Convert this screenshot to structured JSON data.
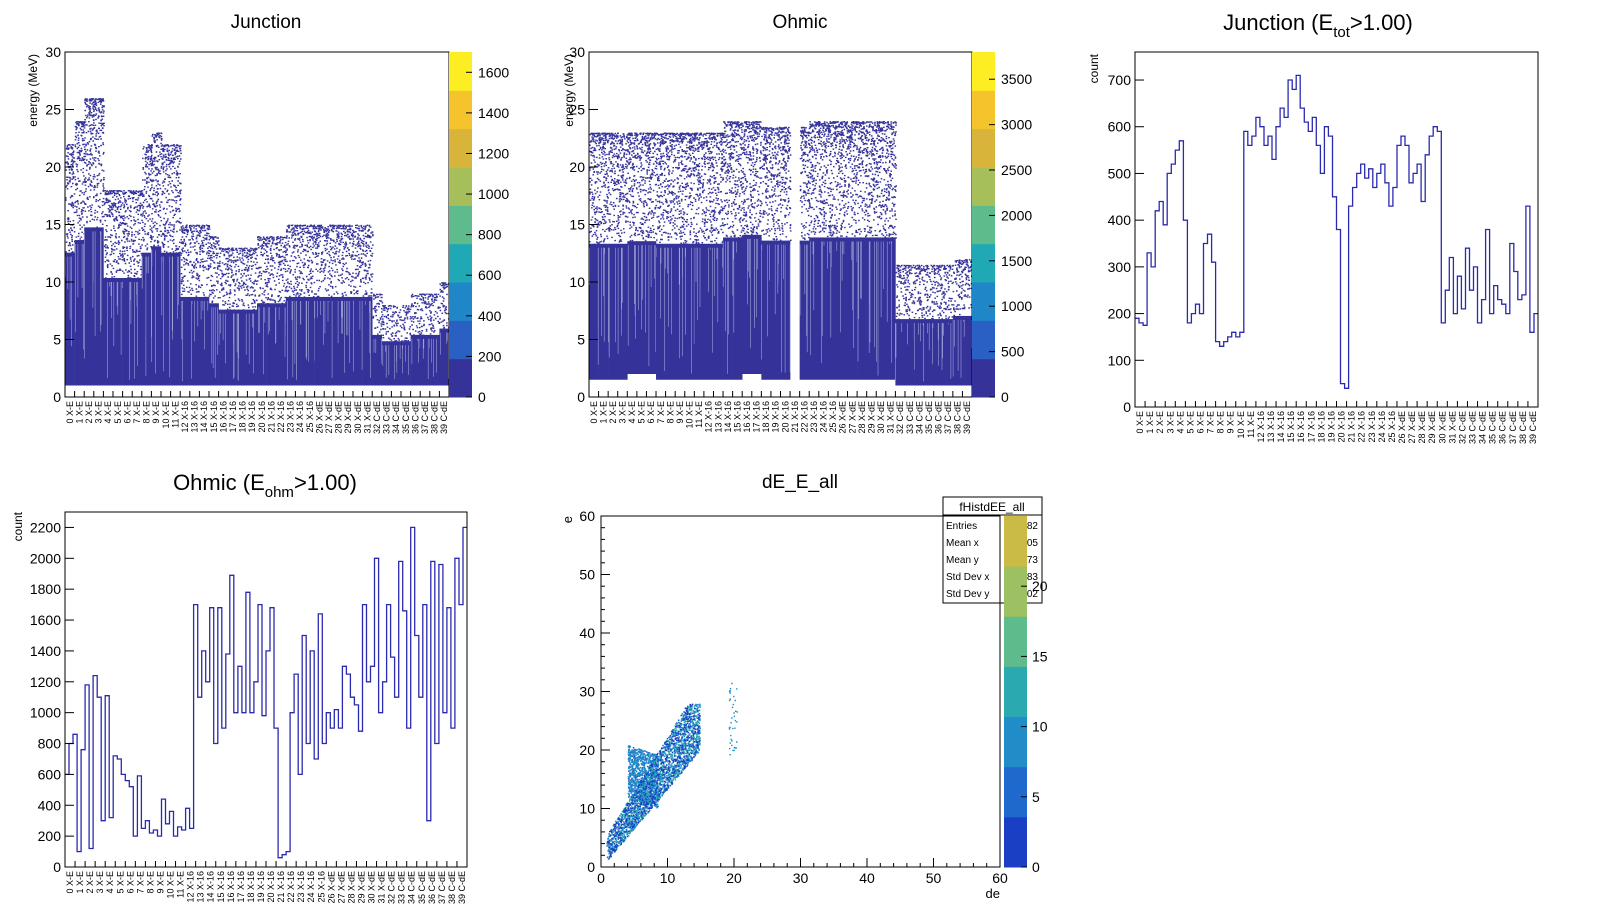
{
  "chart_data": [
    {
      "type": "heatmap",
      "title": "Junction",
      "ylabel": "energy (MeV)",
      "ylim": [
        0,
        30
      ],
      "yticks": [
        0,
        5,
        10,
        15,
        20,
        25,
        30
      ],
      "zlim": [
        0,
        1700
      ],
      "zticks": [
        0,
        200,
        400,
        600,
        800,
        1000,
        1200,
        1400,
        1600
      ],
      "channels": 40,
      "channel_labels": [
        "0 X-E",
        "1 X-E",
        "2 X-E",
        "3 X-E",
        "4 X-E",
        "5 X-E",
        "6 X-E",
        "7 X-E",
        "8 X-E",
        "9 X-E",
        "10 X-E",
        "11 X-E",
        "12 X-16",
        "13 X-16",
        "14 X-16",
        "15 X-16",
        "16 X-16",
        "17 X-16",
        "18 X-16",
        "19 X-16",
        "20 X-16",
        "21 X-16",
        "22 X-16",
        "23 X-16",
        "24 X-16",
        "25 X-16",
        "26 X-dE",
        "27 X-dE",
        "28 X-dE",
        "29 X-dE",
        "30 X-dE",
        "31 X-dE",
        "32 C-dE",
        "33 C-dE",
        "34 C-dE",
        "35 C-dE",
        "36 C-dE",
        "37 C-dE",
        "38 C-dE",
        "39 C-dE"
      ],
      "band_top": [
        22,
        24,
        26,
        26,
        18,
        18,
        18,
        18,
        22,
        23,
        22,
        22,
        15,
        15,
        15,
        14,
        13,
        13,
        13,
        13,
        14,
        14,
        14,
        15,
        15,
        15,
        15,
        15,
        15,
        15,
        15,
        15,
        9,
        8,
        8,
        8,
        9,
        9,
        9,
        10
      ],
      "band_bottom": [
        1,
        1,
        1,
        1,
        1,
        1,
        1,
        1,
        1,
        1,
        1,
        1,
        1,
        1,
        1,
        1,
        1,
        1,
        1,
        1,
        1,
        1,
        1,
        1,
        1,
        1,
        1,
        1,
        1,
        1,
        1,
        1,
        1,
        1,
        1,
        1,
        1,
        1,
        1,
        1
      ],
      "colorbar_colors": [
        "#35339a",
        "#2a5fc4",
        "#1f86c8",
        "#20a8b5",
        "#5ebc8c",
        "#a7bf5a",
        "#d8b53a",
        "#f5c32b",
        "#fdee24"
      ]
    },
    {
      "type": "heatmap",
      "title": "Ohmic",
      "ylabel": "energy (MeV)",
      "ylim": [
        0,
        30
      ],
      "yticks": [
        0,
        5,
        10,
        15,
        20,
        25,
        30
      ],
      "zlim": [
        0,
        3800
      ],
      "zticks": [
        0,
        500,
        1000,
        1500,
        2000,
        2500,
        3000,
        3500
      ],
      "channels": 40,
      "channel_labels": [
        "0 X-E",
        "1 X-E",
        "2 X-E",
        "3 X-E",
        "4 X-E",
        "5 X-E",
        "6 X-E",
        "7 X-E",
        "8 X-E",
        "9 X-E",
        "10 X-E",
        "11 X-E",
        "12 X-16",
        "13 X-16",
        "14 X-16",
        "15 X-16",
        "16 X-16",
        "17 X-16",
        "18 X-16",
        "19 X-16",
        "20 X-16",
        "21 X-16",
        "22 X-16",
        "23 X-16",
        "24 X-16",
        "25 X-16",
        "26 X-dE",
        "27 X-dE",
        "28 X-dE",
        "29 X-dE",
        "30 X-dE",
        "31 X-dE",
        "32 C-dE",
        "33 C-dE",
        "34 C-dE",
        "35 C-dE",
        "36 C-dE",
        "37 C-dE",
        "38 C-dE",
        "39 C-dE"
      ],
      "band_top": [
        23,
        23,
        23,
        23,
        23,
        23,
        23,
        23,
        23,
        23,
        23,
        23,
        23,
        23,
        24,
        24,
        24,
        24,
        23.5,
        23.5,
        23.5,
        0,
        23.5,
        24,
        24,
        24,
        24,
        24,
        24,
        24,
        24,
        24,
        11.5,
        11.5,
        11.5,
        11.5,
        11.5,
        11.5,
        12,
        12
      ],
      "band_bottom": [
        1.5,
        1.5,
        1.5,
        1.5,
        2,
        2,
        2,
        1.5,
        1.5,
        1.5,
        1.5,
        1.5,
        1.5,
        1.5,
        1.5,
        1.5,
        2,
        2,
        1.5,
        1.5,
        1.5,
        0,
        1.5,
        1.5,
        1.5,
        1.5,
        1.5,
        1.5,
        1.5,
        1.5,
        1.5,
        1.5,
        1,
        1,
        1,
        1,
        1,
        1,
        1,
        1
      ],
      "colorbar_colors": [
        "#35339a",
        "#2a5fc4",
        "#1f86c8",
        "#20a8b5",
        "#5ebc8c",
        "#a7bf5a",
        "#d8b53a",
        "#f5c32b",
        "#fdee24"
      ]
    },
    {
      "type": "line",
      "title_main": "Junction (E",
      "title_sub": "tot",
      "title_tail": ">1.00)",
      "ylabel": "count",
      "ylim": [
        0,
        760
      ],
      "yticks": [
        0,
        100,
        200,
        300,
        400,
        500,
        600,
        700
      ],
      "channels": 40,
      "channel_labels": [
        "0 X-E",
        "1 X-E",
        "2 X-E",
        "3 X-E",
        "4 X-E",
        "5 X-E",
        "6 X-E",
        "7 X-E",
        "8 X-E",
        "9 X-E",
        "10 X-E",
        "11 X-E",
        "12 X-16",
        "13 X-16",
        "14 X-16",
        "15 X-16",
        "16 X-16",
        "17 X-16",
        "18 X-16",
        "19 X-16",
        "20 X-16",
        "21 X-16",
        "22 X-16",
        "23 X-16",
        "24 X-16",
        "25 X-16",
        "26 X-dE",
        "27 X-dE",
        "28 X-dE",
        "29 X-dE",
        "30 X-dE",
        "31 X-dE",
        "32 C-dE",
        "33 C-dE",
        "34 C-dE",
        "35 C-dE",
        "36 C-dE",
        "37 C-dE",
        "38 C-dE",
        "39 C-dE"
      ],
      "y": [
        190,
        180,
        175,
        330,
        300,
        420,
        440,
        390,
        500,
        520,
        550,
        570,
        400,
        180,
        200,
        220,
        200,
        350,
        370,
        310,
        140,
        130,
        140,
        150,
        160,
        150,
        160,
        590,
        560,
        580,
        620,
        600,
        560,
        580,
        530,
        600,
        640,
        620,
        700,
        680,
        710,
        640,
        610,
        590,
        620,
        560,
        500,
        600,
        580,
        450,
        380,
        50,
        40,
        430,
        470,
        500,
        520,
        490,
        510,
        470,
        500,
        520,
        480,
        430,
        470,
        560,
        580,
        560,
        480,
        500,
        520,
        440,
        540,
        580,
        600,
        590,
        180,
        250,
        320,
        200,
        280,
        210,
        340,
        250,
        300,
        180,
        230,
        380,
        200,
        260,
        230,
        220,
        200,
        350,
        290,
        230,
        240,
        430,
        160,
        200
      ],
      "colors": {
        "line": "#2a2ab0"
      }
    },
    {
      "type": "line",
      "title_main": "Ohmic (E",
      "title_sub": "ohm",
      "title_tail": ">1.00)",
      "ylabel": "count",
      "ylim": [
        0,
        2300
      ],
      "yticks": [
        0,
        200,
        400,
        600,
        800,
        1000,
        1200,
        1400,
        1600,
        1800,
        2000,
        2200
      ],
      "channels": 40,
      "channel_labels": [
        "0 X-E",
        "1 X-E",
        "2 X-E",
        "3 X-E",
        "4 X-E",
        "5 X-E",
        "6 X-E",
        "7 X-E",
        "8 X-E",
        "9 X-E",
        "10 X-E",
        "11 X-E",
        "12 X-16",
        "13 X-16",
        "14 X-16",
        "15 X-16",
        "16 X-16",
        "17 X-16",
        "18 X-16",
        "19 X-16",
        "20 X-16",
        "21 X-16",
        "22 X-16",
        "23 X-16",
        "24 X-16",
        "25 X-16",
        "26 X-dE",
        "27 X-dE",
        "28 X-dE",
        "29 X-dE",
        "30 X-dE",
        "31 X-dE",
        "32 C-dE",
        "33 C-dE",
        "34 C-dE",
        "35 C-dE",
        "36 C-dE",
        "37 C-dE",
        "38 C-dE",
        "39 C-dE"
      ],
      "y": [
        600,
        800,
        860,
        100,
        760,
        1180,
        120,
        1240,
        1100,
        300,
        1110,
        320,
        720,
        700,
        600,
        560,
        520,
        200,
        590,
        250,
        300,
        220,
        240,
        200,
        440,
        280,
        360,
        200,
        260,
        240,
        380,
        250,
        1700,
        1100,
        1400,
        1200,
        1680,
        800,
        1680,
        900,
        1380,
        1890,
        1000,
        1300,
        1000,
        1780,
        1000,
        1200,
        1700,
        980,
        1400,
        1680,
        900,
        60,
        80,
        100,
        1000,
        1250,
        600,
        1500,
        800,
        1400,
        700,
        1640,
        800,
        1000,
        900,
        1020,
        900,
        1300,
        1250,
        1100,
        1050,
        880,
        1700,
        1200,
        1300,
        2000,
        1000,
        1200,
        1700,
        1360,
        1100,
        1980,
        1660,
        900,
        2200,
        1500,
        1100,
        1700,
        300,
        1980,
        800,
        1960,
        1000,
        1680,
        900,
        2000,
        1700,
        2200
      ],
      "colors": {
        "line": "#2a2ab0"
      }
    },
    {
      "type": "scatter",
      "title": "dE_E_all",
      "xlabel": "de",
      "ylabel": "e",
      "xlim": [
        0,
        60
      ],
      "ylim": [
        0,
        60
      ],
      "xticks": [
        0,
        10,
        20,
        30,
        40,
        50,
        60
      ],
      "yticks": [
        0,
        10,
        20,
        30,
        40,
        50,
        60
      ],
      "zticks": [
        0,
        5,
        10,
        15,
        20
      ],
      "zlim": [
        0,
        25
      ],
      "stats": {
        "name": "fHistdEE_all",
        "rows": [
          {
            "label": "Entries",
            "value": "7182"
          },
          {
            "label": "Mean x",
            "value": "7.005"
          },
          {
            "label": "Mean y",
            "value": "15.73"
          },
          {
            "label": "Std Dev x",
            "value": "2.883"
          },
          {
            "label": "Std Dev y",
            "value": "4.02"
          }
        ]
      },
      "points_summary": "dense band rising from (1,3) to (15,27), sparse points near de=19-20, e=20-32",
      "colorbar_colors": [
        "#1a3fc4",
        "#1f68cc",
        "#208dc8",
        "#2aa9b0",
        "#5ebc8c",
        "#9cc062",
        "#c9bb45"
      ]
    }
  ]
}
